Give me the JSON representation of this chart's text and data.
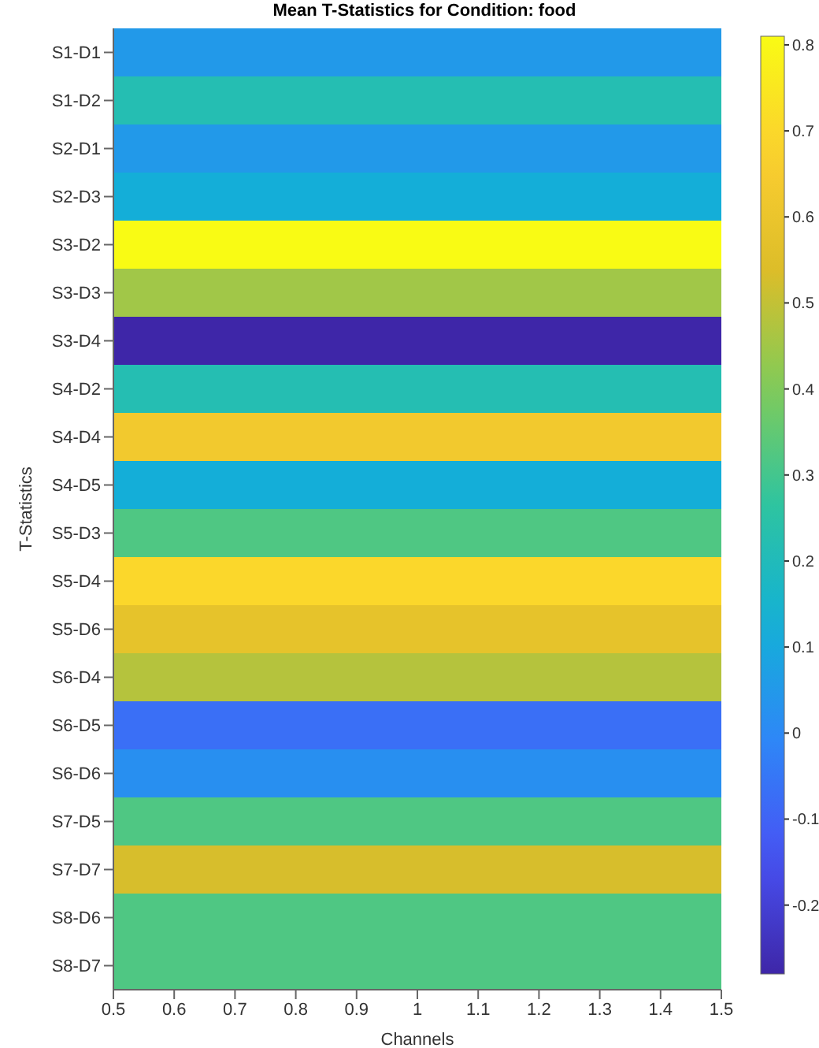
{
  "chart_data": {
    "type": "heatmap",
    "title": "Mean T-Statistics for Condition: food",
    "xlabel": "Channels",
    "ylabel": "T-Statistics",
    "xlim": [
      0.5,
      1.5
    ],
    "xticks": [
      0.5,
      0.6,
      0.7,
      0.8,
      0.9,
      1,
      1.1,
      1.2,
      1.3,
      1.4,
      1.5
    ],
    "y_categories": [
      "S1-D1",
      "S1-D2",
      "S2-D1",
      "S2-D3",
      "S3-D2",
      "S3-D3",
      "S3-D4",
      "S4-D2",
      "S4-D4",
      "S4-D5",
      "S5-D3",
      "S5-D4",
      "S5-D6",
      "S6-D4",
      "S6-D5",
      "S6-D6",
      "S7-D5",
      "S7-D7",
      "S8-D6",
      "S8-D7"
    ],
    "cells": [
      [
        0.05
      ],
      [
        0.22
      ],
      [
        0.05
      ],
      [
        0.12
      ],
      [
        0.81
      ],
      [
        0.45
      ],
      [
        -0.28
      ],
      [
        0.22
      ],
      [
        0.63
      ],
      [
        0.12
      ],
      [
        0.32
      ],
      [
        0.7
      ],
      [
        0.58
      ],
      [
        0.48
      ],
      [
        -0.07
      ],
      [
        0.02
      ],
      [
        0.32
      ],
      [
        0.53
      ],
      [
        0.32
      ],
      [
        0.32
      ]
    ],
    "clim": [
      -0.28,
      0.81
    ],
    "cticks": [
      -0.2,
      -0.1,
      0,
      0.1,
      0.2,
      0.3,
      0.4,
      0.5,
      0.6,
      0.7,
      0.8
    ]
  }
}
